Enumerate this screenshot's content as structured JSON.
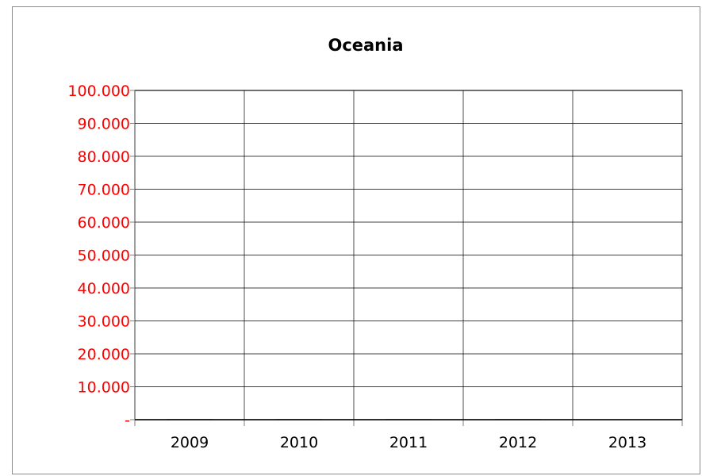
{
  "chart_data": {
    "type": "bar",
    "title": "Oceania",
    "categories": [
      "2009",
      "2010",
      "2011",
      "2012",
      "2013"
    ],
    "values": [
      150,
      150,
      150,
      150,
      0
    ],
    "ylim": [
      0,
      100000
    ],
    "yticks": [
      0,
      10000,
      20000,
      30000,
      40000,
      50000,
      60000,
      70000,
      80000,
      90000,
      100000
    ],
    "ytick_labels": [
      "-",
      "10.000",
      "20.000",
      "30.000",
      "40.000",
      "50.000",
      "60.000",
      "70.000",
      "80.000",
      "90.000",
      "100.000"
    ],
    "xlabel": "",
    "ylabel": "",
    "grid": true,
    "colors": {
      "bar": "#000000",
      "ytick_text": "#ff0000",
      "grid": "#000000",
      "axis": "#7f7f7f"
    }
  }
}
